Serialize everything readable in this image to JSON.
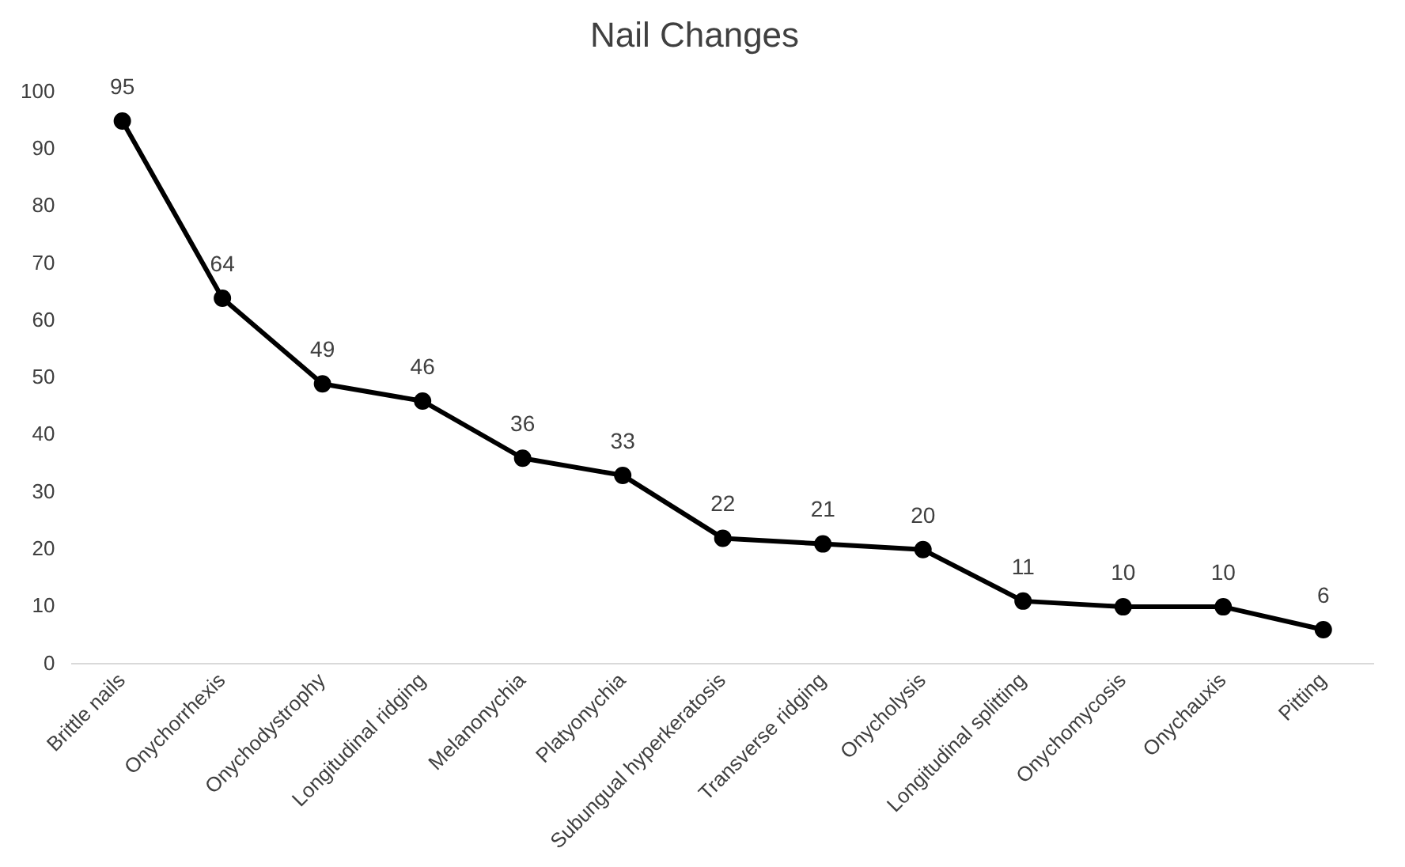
{
  "chart_data": {
    "type": "line",
    "title": "Nail Changes",
    "categories": [
      "Brittle nails",
      "Onychorrhexis",
      "Onychodystrophy",
      "Longitudinal ridging",
      "Melanonychia",
      "Platyonychia",
      "Subungual hyperkeratosis",
      "Transverse ridging",
      "Onycholysis",
      "Longitudinal splitting",
      "Onychomycosis",
      "Onychauxis",
      "Pitting"
    ],
    "values": [
      95,
      64,
      49,
      46,
      36,
      33,
      22,
      21,
      20,
      11,
      10,
      10,
      6
    ],
    "color": "#000000",
    "ylim": [
      0,
      100
    ],
    "yticks": [
      0,
      10,
      20,
      30,
      40,
      50,
      60,
      70,
      80,
      90,
      100
    ],
    "grid": false,
    "legend": false,
    "marker": "circle",
    "line_style": "solid",
    "data_labels": true
  }
}
